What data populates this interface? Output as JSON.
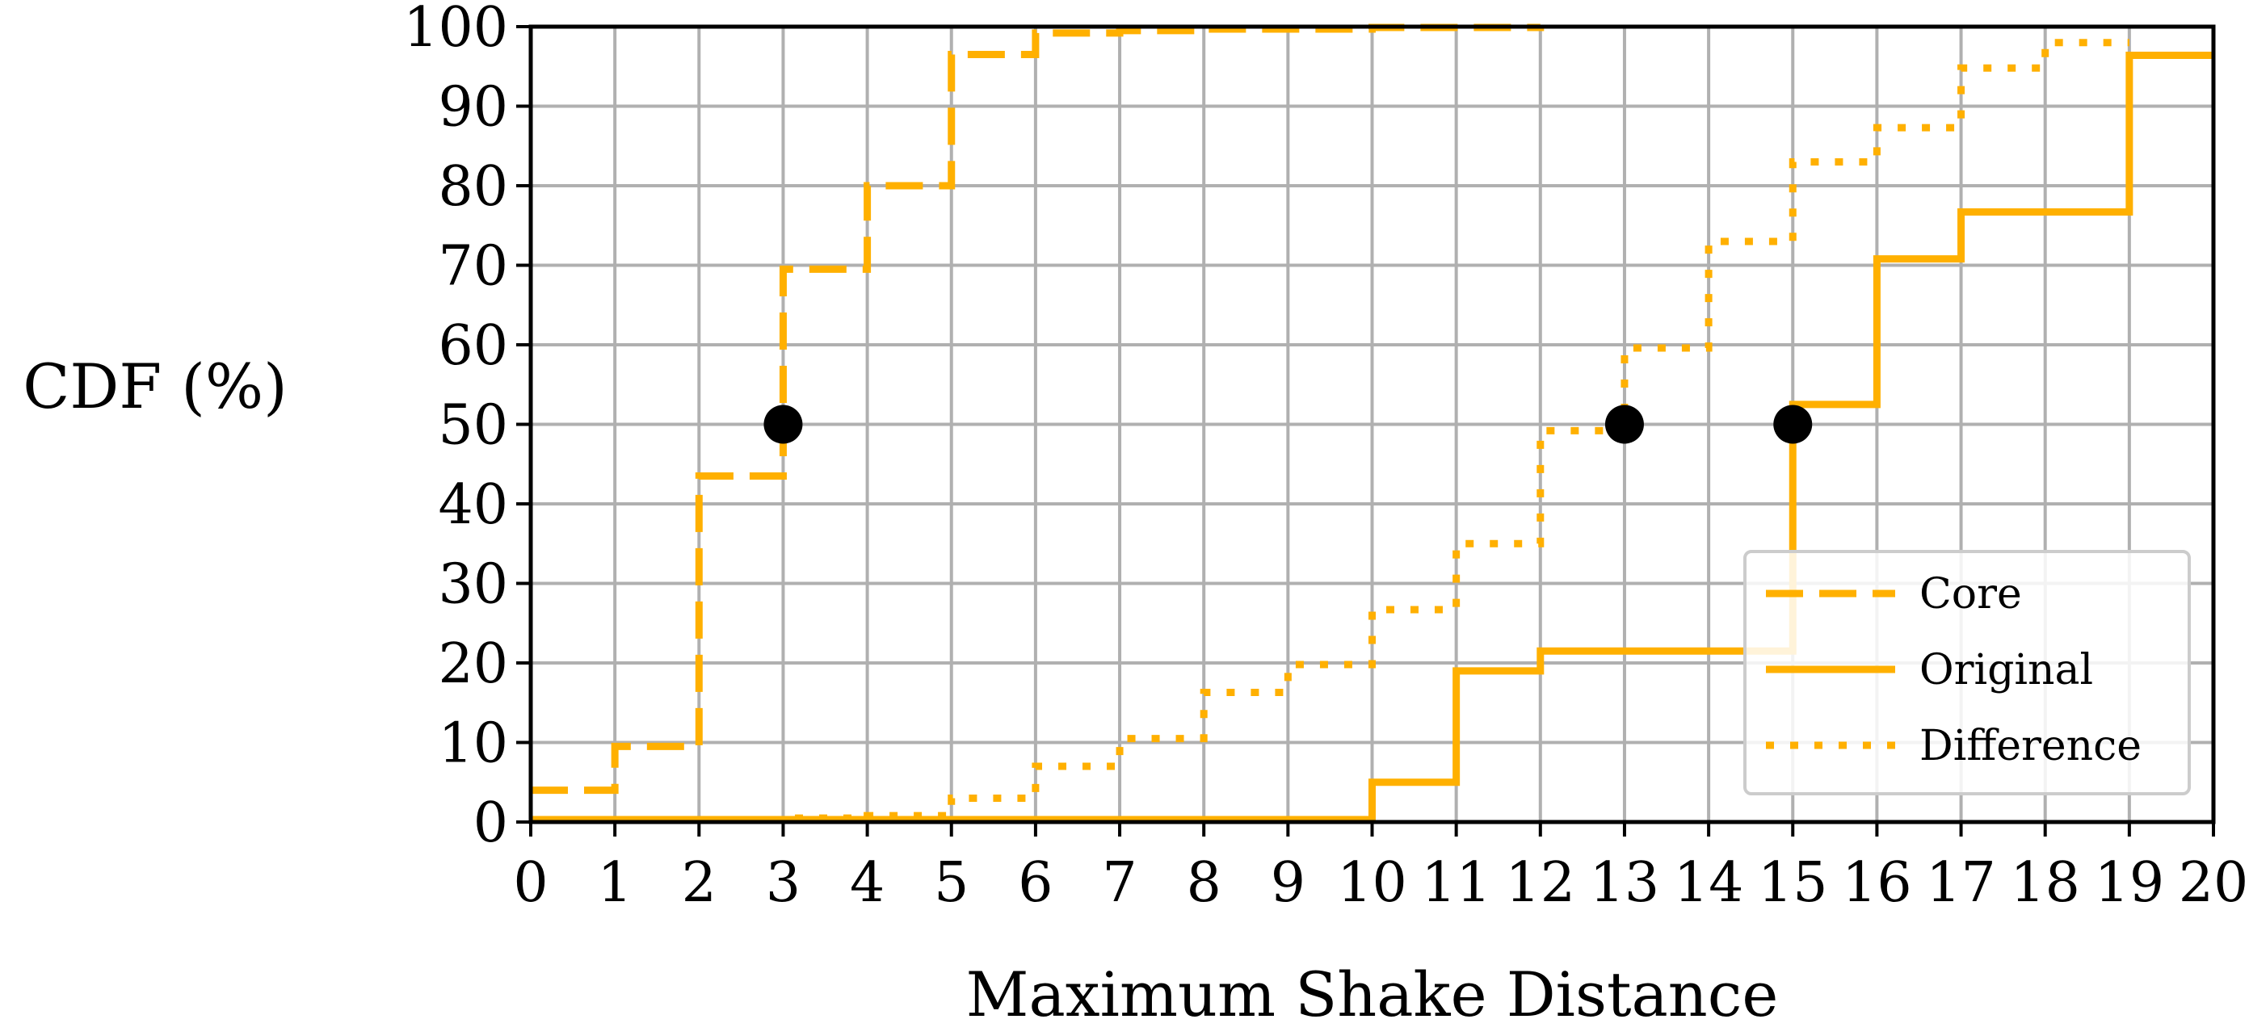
{
  "chart_data": {
    "type": "line",
    "xlabel": "Maximum Shake Distance",
    "ylabel": "CDF (%)",
    "xlim": [
      0,
      20
    ],
    "ylim": [
      0,
      100
    ],
    "xticks": [
      0,
      1,
      2,
      3,
      4,
      5,
      6,
      7,
      8,
      9,
      10,
      11,
      12,
      13,
      14,
      15,
      16,
      17,
      18,
      19,
      20
    ],
    "yticks": [
      0,
      10,
      20,
      30,
      40,
      50,
      60,
      70,
      80,
      90,
      100
    ],
    "grid": true,
    "legend_position": "bottom-right",
    "step": "post",
    "series_color": "#FFB000",
    "series": [
      {
        "name": "Core",
        "style": "dashed",
        "points": [
          [
            0,
            4
          ],
          [
            1,
            9.5
          ],
          [
            2,
            43.5
          ],
          [
            3,
            69.5
          ],
          [
            4,
            80
          ],
          [
            5,
            96.5
          ],
          [
            6,
            99.2
          ],
          [
            7,
            99.5
          ],
          [
            8,
            99.7
          ],
          [
            10,
            99.9
          ],
          [
            12,
            100
          ]
        ]
      },
      {
        "name": "Original",
        "style": "solid",
        "points": [
          [
            0,
            0.3
          ],
          [
            10,
            5
          ],
          [
            11,
            19
          ],
          [
            12,
            21.5
          ],
          [
            15,
            52.5
          ],
          [
            16,
            70.8
          ],
          [
            17,
            76.7
          ],
          [
            19,
            96.4
          ],
          [
            20,
            96.4
          ]
        ]
      },
      {
        "name": "Difference",
        "style": "dotted",
        "points": [
          [
            0,
            0.2
          ],
          [
            3,
            0.5
          ],
          [
            4,
            0.8
          ],
          [
            5,
            3
          ],
          [
            6,
            7
          ],
          [
            7,
            10.5
          ],
          [
            8,
            16.3
          ],
          [
            9,
            19.8
          ],
          [
            10,
            26.7
          ],
          [
            11,
            35
          ],
          [
            12,
            49.2
          ],
          [
            13,
            59.6
          ],
          [
            14,
            73
          ],
          [
            15,
            83
          ],
          [
            16,
            87.3
          ],
          [
            17,
            94.8
          ],
          [
            18,
            98
          ],
          [
            19,
            98
          ]
        ]
      }
    ],
    "medians": [
      {
        "series": "Core",
        "x": 3,
        "y": 50
      },
      {
        "series": "Difference",
        "x": 13,
        "y": 50
      },
      {
        "series": "Original",
        "x": 15,
        "y": 50
      }
    ]
  }
}
